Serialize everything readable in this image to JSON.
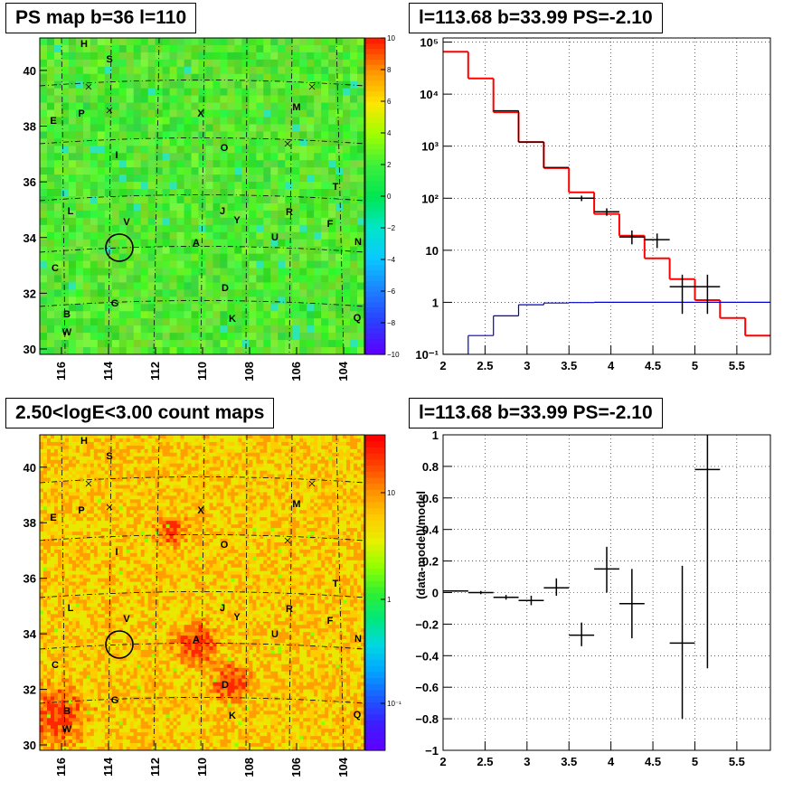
{
  "panels": {
    "ps_map": {
      "title": "PS map b=36 l=110",
      "type": "heatmap",
      "x_ticks": [
        "116",
        "114",
        "112",
        "110",
        "108",
        "106",
        "104"
      ],
      "y_ticks": [
        "30",
        "32",
        "34",
        "36",
        "38",
        "40"
      ],
      "colorbar_ticks": [
        "10",
        "8",
        "6",
        "4",
        "2",
        "0",
        "−2",
        "−4",
        "−6",
        "−8",
        "−10"
      ],
      "colormap": [
        "#5c00ff",
        "#2a40ff",
        "#1c82ff",
        "#0ac8ff",
        "#00e6c8",
        "#00e650",
        "#3cf03c",
        "#a0ff00",
        "#ffe600",
        "#ff9600",
        "#ff1e00"
      ]
    },
    "count_map": {
      "title": "2.50<logE<3.00 count maps",
      "type": "heatmap",
      "x_ticks": [
        "116",
        "114",
        "112",
        "110",
        "108",
        "106",
        "104"
      ],
      "y_ticks": [
        "30",
        "32",
        "34",
        "36",
        "38",
        "40"
      ],
      "colorbar_ticks": [
        "10",
        "1",
        "10⁻¹"
      ]
    },
    "spectrum": {
      "title": "l=113.68 b=33.99 PS=-2.10",
      "type": "line",
      "x_ticks": [
        "2",
        "2.5",
        "3",
        "3.5",
        "4",
        "4.5",
        "5",
        "5.5"
      ],
      "y_ticks": [
        "10⁻¹",
        "1",
        "10",
        "10²",
        "10³",
        "10⁴",
        "10⁵"
      ]
    },
    "residual": {
      "title": "l=113.68 b=33.99 PS=-2.10",
      "type": "scatter",
      "ylabel": "(data-model)/model",
      "x_ticks": [
        "2",
        "2.5",
        "3",
        "3.5",
        "4",
        "4.5",
        "5",
        "5.5"
      ],
      "y_ticks": [
        "−1",
        "−0.8",
        "−0.6",
        "−0.4",
        "−0.2",
        "0",
        "0.2",
        "0.4",
        "0.6",
        "0.8",
        "1"
      ]
    }
  },
  "map_labels": [
    "H",
    "S",
    "E",
    "P",
    "X",
    "M",
    "O",
    "I",
    "T",
    "L",
    "V",
    "J",
    "Y",
    "R",
    "F",
    "A",
    "U",
    "N",
    "C",
    "D",
    "G",
    "B",
    "K",
    "Q",
    "W"
  ],
  "chart_data": [
    {
      "type": "line",
      "title": "l=113.68 b=33.99 PS=-2.10",
      "x_scale": "linear",
      "y_scale": "log",
      "xlim": [
        2,
        5.9
      ],
      "ylim": [
        0.1,
        120000
      ],
      "bin_edges": [
        2.0,
        2.3,
        2.6,
        2.9,
        3.2,
        3.5,
        3.8,
        4.1,
        4.4,
        4.7,
        5.0,
        5.3,
        5.6,
        5.9
      ],
      "series": [
        {
          "color": "#ff0000",
          "values": [
            65000,
            20000,
            4500,
            1200,
            380,
            130,
            50,
            19,
            7,
            2.8,
            1.1,
            0.5,
            0.23
          ]
        },
        {
          "color": "#000000",
          "values": [
            null,
            null,
            4800,
            1200,
            390,
            null,
            null,
            null,
            null,
            null,
            null,
            null,
            null
          ]
        },
        {
          "color": "#0000cc",
          "values": [
            0.1,
            0.23,
            0.55,
            0.9,
            0.97,
            0.99,
            1,
            1,
            1,
            1,
            1,
            1,
            1
          ]
        }
      ],
      "points": [
        {
          "x": 3.65,
          "y": 100,
          "lo": 88,
          "hi": 112
        },
        {
          "x": 3.95,
          "y": 55,
          "lo": 46,
          "hi": 64
        },
        {
          "x": 4.25,
          "y": 18,
          "lo": 13,
          "hi": 24
        },
        {
          "x": 4.55,
          "y": 16,
          "lo": 11,
          "hi": 21
        },
        {
          "x": 4.85,
          "y": 2,
          "lo": 0.6,
          "hi": 3.4
        },
        {
          "x": 5.15,
          "y": 2,
          "lo": 0.6,
          "hi": 3.4
        }
      ]
    },
    {
      "type": "scatter",
      "title": "l=113.68 b=33.99 PS=-2.10",
      "ylabel": "(data-model)/model",
      "xlim": [
        2,
        5.9
      ],
      "ylim": [
        -1,
        1
      ],
      "points": [
        {
          "x": 2.15,
          "y": 0.01,
          "lo": 0.005,
          "hi": 0.015,
          "xerr": 0.15
        },
        {
          "x": 2.45,
          "y": 0,
          "lo": -0.01,
          "hi": 0.01,
          "xerr": 0.15
        },
        {
          "x": 2.75,
          "y": -0.03,
          "lo": -0.045,
          "hi": -0.015,
          "xerr": 0.15
        },
        {
          "x": 3.05,
          "y": -0.05,
          "lo": -0.08,
          "hi": -0.02,
          "xerr": 0.15
        },
        {
          "x": 3.35,
          "y": 0.03,
          "lo": -0.02,
          "hi": 0.09,
          "xerr": 0.15
        },
        {
          "x": 3.65,
          "y": -0.27,
          "lo": -0.34,
          "hi": -0.19,
          "xerr": 0.15
        },
        {
          "x": 3.95,
          "y": 0.15,
          "lo": 0,
          "hi": 0.29,
          "xerr": 0.15
        },
        {
          "x": 4.25,
          "y": -0.07,
          "lo": -0.29,
          "hi": 0.15,
          "xerr": 0.15
        },
        {
          "x": 4.85,
          "y": -0.32,
          "lo": -0.8,
          "hi": 0.17,
          "xerr": 0.15
        },
        {
          "x": 5.15,
          "y": 0.78,
          "lo": -0.48,
          "hi": 1.0,
          "xerr": 0.15
        }
      ]
    }
  ]
}
